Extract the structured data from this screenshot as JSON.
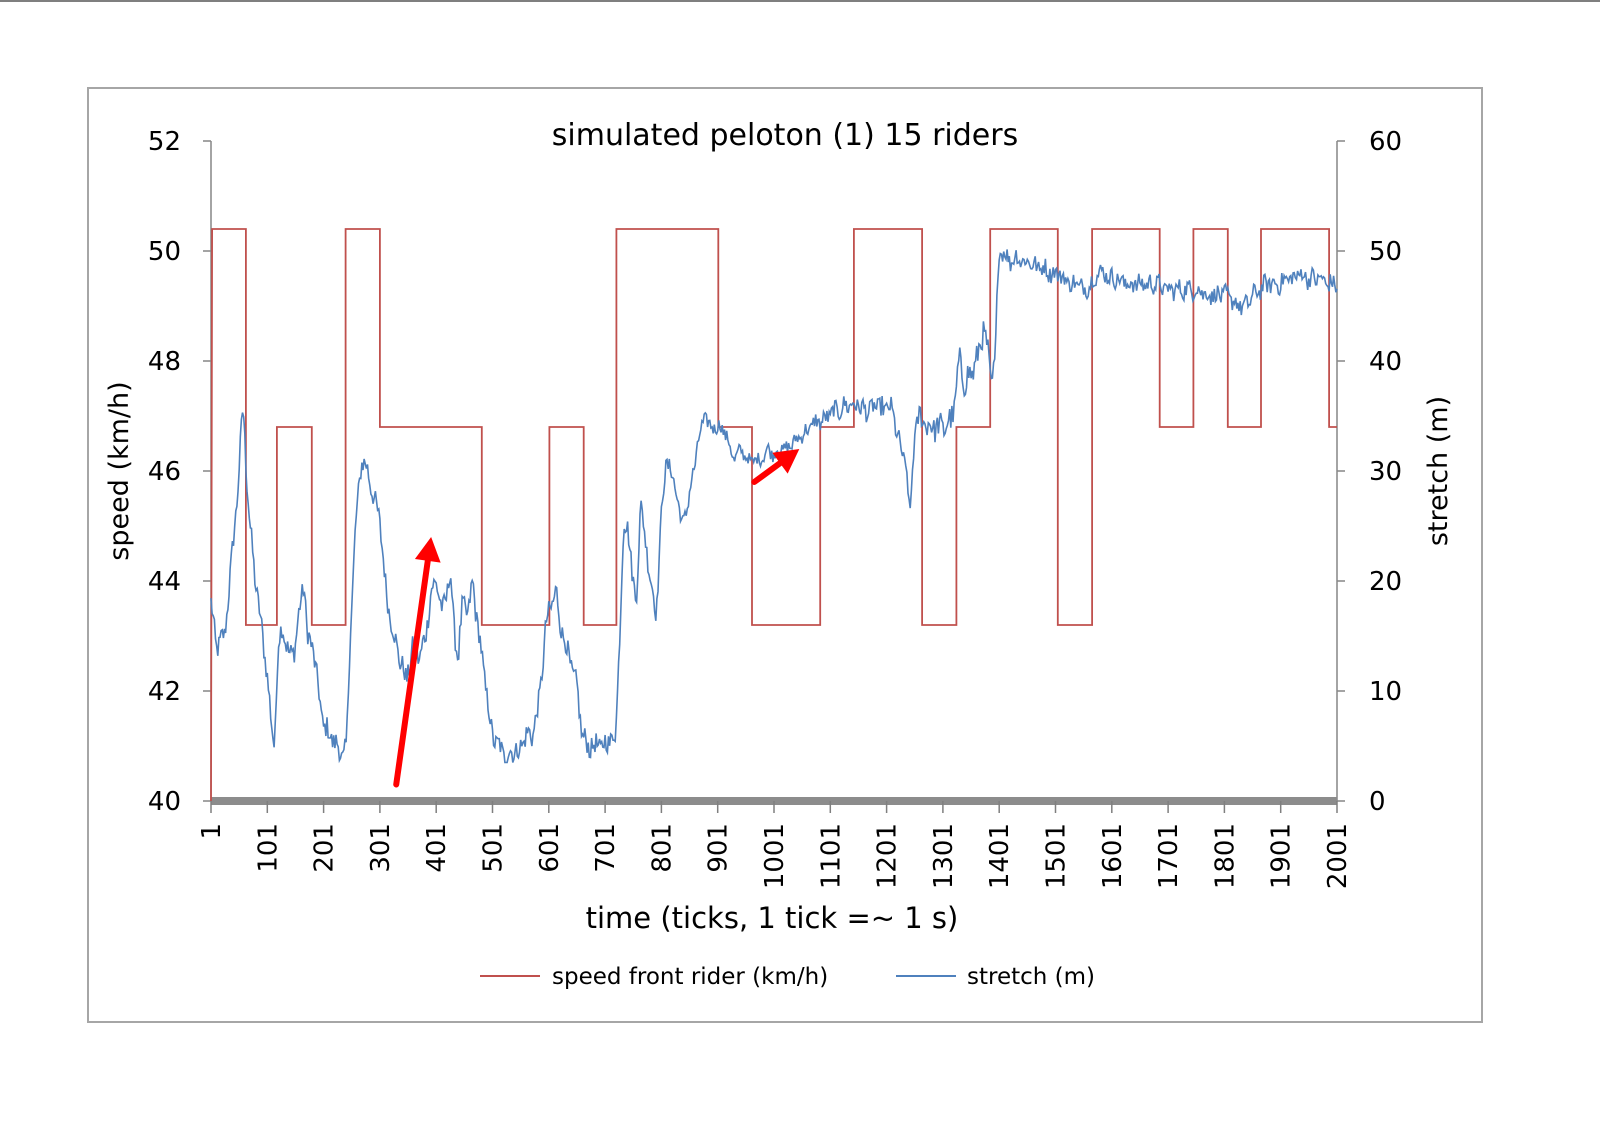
{
  "chart_data": {
    "type": "line",
    "title": "simulated peloton (1) 15 riders",
    "xlabel": "time (ticks, 1 tick =~ 1 s)",
    "ylabel_left": "speed (km/h)",
    "ylabel_right": "stretch (m)",
    "xlim": [
      1,
      2001
    ],
    "ylim_left": [
      40,
      52
    ],
    "ylim_right": [
      0,
      60
    ],
    "x_ticks": [
      "1",
      "101",
      "201",
      "301",
      "401",
      "501",
      "601",
      "701",
      "801",
      "901",
      "1001",
      "1101",
      "1201",
      "1301",
      "1401",
      "1501",
      "1601",
      "1701",
      "1801",
      "1901",
      "2001"
    ],
    "y_ticks_left": [
      "40",
      "42",
      "44",
      "46",
      "48",
      "50",
      "52"
    ],
    "y_ticks_right": [
      "0",
      "10",
      "20",
      "30",
      "40",
      "50",
      "60"
    ],
    "grid": false,
    "legend_position": "bottom",
    "series": [
      {
        "name": "speed front rider (km/h)",
        "axis": "left",
        "color": "#c0504d",
        "step": true,
        "points": [
          [
            1,
            40.0
          ],
          [
            3,
            50.4
          ],
          [
            63,
            50.4
          ],
          [
            63,
            43.2
          ],
          [
            118,
            43.2
          ],
          [
            118,
            46.8
          ],
          [
            180,
            46.8
          ],
          [
            180,
            43.2
          ],
          [
            240,
            43.2
          ],
          [
            240,
            50.4
          ],
          [
            301,
            50.4
          ],
          [
            301,
            46.8
          ],
          [
            482,
            46.8
          ],
          [
            482,
            43.2
          ],
          [
            602,
            43.2
          ],
          [
            602,
            46.8
          ],
          [
            663,
            46.8
          ],
          [
            663,
            43.2
          ],
          [
            721,
            43.2
          ],
          [
            721,
            50.4
          ],
          [
            902,
            50.4
          ],
          [
            902,
            46.8
          ],
          [
            962,
            46.8
          ],
          [
            962,
            43.2
          ],
          [
            1083,
            43.2
          ],
          [
            1083,
            46.8
          ],
          [
            1143,
            46.8
          ],
          [
            1143,
            50.4
          ],
          [
            1264,
            50.4
          ],
          [
            1264,
            43.2
          ],
          [
            1325,
            43.2
          ],
          [
            1325,
            46.8
          ],
          [
            1385,
            46.8
          ],
          [
            1385,
            50.4
          ],
          [
            1505,
            50.4
          ],
          [
            1505,
            43.2
          ],
          [
            1566,
            43.2
          ],
          [
            1566,
            50.4
          ],
          [
            1686,
            50.4
          ],
          [
            1686,
            46.8
          ],
          [
            1746,
            46.8
          ],
          [
            1746,
            50.4
          ],
          [
            1807,
            50.4
          ],
          [
            1807,
            46.8
          ],
          [
            1866,
            46.8
          ],
          [
            1866,
            50.4
          ],
          [
            1987,
            50.4
          ],
          [
            1987,
            46.8
          ],
          [
            2001,
            46.8
          ]
        ]
      },
      {
        "name": "stretch (m)",
        "axis": "right",
        "color": "#4f81bd",
        "noise": [
          [
            1,
            1.0
          ],
          [
            720,
            1.0
          ],
          [
            960,
            0.5
          ],
          [
            1380,
            1.3
          ],
          [
            1400,
            0.8
          ],
          [
            2001,
            0.8
          ]
        ],
        "points": [
          [
            1,
            18
          ],
          [
            10,
            14
          ],
          [
            25,
            15
          ],
          [
            38,
            22
          ],
          [
            48,
            28
          ],
          [
            58,
            36
          ],
          [
            64,
            30
          ],
          [
            70,
            25
          ],
          [
            80,
            20
          ],
          [
            90,
            16
          ],
          [
            100,
            12
          ],
          [
            108,
            7
          ],
          [
            114,
            5
          ],
          [
            120,
            14
          ],
          [
            128,
            16
          ],
          [
            140,
            13
          ],
          [
            150,
            14
          ],
          [
            160,
            18
          ],
          [
            166,
            20
          ],
          [
            172,
            15
          ],
          [
            182,
            14
          ],
          [
            192,
            10
          ],
          [
            200,
            7
          ],
          [
            212,
            6
          ],
          [
            225,
            5
          ],
          [
            236,
            4
          ],
          [
            242,
            5
          ],
          [
            248,
            15
          ],
          [
            258,
            25
          ],
          [
            268,
            31
          ],
          [
            280,
            30
          ],
          [
            292,
            27
          ],
          [
            300,
            26
          ],
          [
            312,
            19
          ],
          [
            326,
            15
          ],
          [
            336,
            13
          ],
          [
            348,
            11
          ],
          [
            360,
            14
          ],
          [
            372,
            13
          ],
          [
            382,
            15
          ],
          [
            392,
            19
          ],
          [
            402,
            20
          ],
          [
            412,
            17
          ],
          [
            420,
            19
          ],
          [
            426,
            21
          ],
          [
            432,
            16
          ],
          [
            440,
            13
          ],
          [
            448,
            18
          ],
          [
            458,
            17
          ],
          [
            466,
            20
          ],
          [
            472,
            17
          ],
          [
            480,
            14
          ],
          [
            490,
            10
          ],
          [
            500,
            6
          ],
          [
            512,
            5
          ],
          [
            524,
            4
          ],
          [
            536,
            4.5
          ],
          [
            548,
            4.5
          ],
          [
            560,
            6
          ],
          [
            572,
            6
          ],
          [
            584,
            9
          ],
          [
            596,
            16
          ],
          [
            606,
            18
          ],
          [
            614,
            19
          ],
          [
            622,
            16
          ],
          [
            632,
            14
          ],
          [
            642,
            12
          ],
          [
            652,
            10
          ],
          [
            660,
            6
          ],
          [
            670,
            5
          ],
          [
            682,
            5
          ],
          [
            696,
            5
          ],
          [
            708,
            5.5
          ],
          [
            720,
            6
          ],
          [
            726,
            14
          ],
          [
            734,
            25
          ],
          [
            742,
            25
          ],
          [
            750,
            20
          ],
          [
            756,
            18
          ],
          [
            764,
            27
          ],
          [
            772,
            24
          ],
          [
            782,
            20
          ],
          [
            792,
            17
          ],
          [
            802,
            27
          ],
          [
            810,
            31
          ],
          [
            818,
            30
          ],
          [
            828,
            28
          ],
          [
            838,
            25
          ],
          [
            848,
            27
          ],
          [
            858,
            30
          ],
          [
            868,
            33
          ],
          [
            878,
            35
          ],
          [
            888,
            34
          ],
          [
            898,
            34
          ],
          [
            908,
            34
          ],
          [
            918,
            33
          ],
          [
            930,
            31
          ],
          [
            942,
            32
          ],
          [
            954,
            31
          ],
          [
            966,
            31
          ],
          [
            978,
            31
          ],
          [
            990,
            32
          ],
          [
            1000,
            31.5
          ],
          [
            1012,
            32
          ],
          [
            1024,
            32
          ],
          [
            1034,
            32.5
          ],
          [
            1044,
            33
          ],
          [
            1056,
            33.5
          ],
          [
            1066,
            34
          ],
          [
            1076,
            34.5
          ],
          [
            1086,
            34.5
          ],
          [
            1098,
            35
          ],
          [
            1108,
            35.5
          ],
          [
            1118,
            35.5
          ],
          [
            1128,
            36
          ],
          [
            1138,
            36
          ],
          [
            1150,
            36
          ],
          [
            1162,
            35.5
          ],
          [
            1172,
            35.5
          ],
          [
            1184,
            36
          ],
          [
            1196,
            35.5
          ],
          [
            1206,
            36
          ],
          [
            1218,
            34
          ],
          [
            1230,
            31
          ],
          [
            1238,
            30
          ],
          [
            1242,
            25
          ],
          [
            1250,
            33
          ],
          [
            1258,
            35
          ],
          [
            1268,
            34.5
          ],
          [
            1278,
            34
          ],
          [
            1290,
            34
          ],
          [
            1302,
            34
          ],
          [
            1314,
            34.5
          ],
          [
            1322,
            36
          ],
          [
            1330,
            40
          ],
          [
            1340,
            38
          ],
          [
            1352,
            39
          ],
          [
            1362,
            40
          ],
          [
            1372,
            43
          ],
          [
            1380,
            41
          ],
          [
            1386,
            38
          ],
          [
            1394,
            40
          ],
          [
            1400,
            50
          ],
          [
            1408,
            50
          ],
          [
            1420,
            49
          ],
          [
            1432,
            49.5
          ],
          [
            1444,
            49
          ],
          [
            1456,
            49
          ],
          [
            1468,
            48.5
          ],
          [
            1480,
            48.5
          ],
          [
            1492,
            48
          ],
          [
            1504,
            48
          ],
          [
            1516,
            47.5
          ],
          [
            1528,
            47
          ],
          [
            1540,
            47
          ],
          [
            1552,
            46.5
          ],
          [
            1564,
            47
          ],
          [
            1576,
            48
          ],
          [
            1588,
            48
          ],
          [
            1600,
            47.5
          ],
          [
            1612,
            47.5
          ],
          [
            1624,
            47
          ],
          [
            1636,
            47
          ],
          [
            1648,
            47
          ],
          [
            1660,
            47
          ],
          [
            1672,
            47
          ],
          [
            1684,
            47
          ],
          [
            1696,
            46.5
          ],
          [
            1708,
            46.5
          ],
          [
            1720,
            46.5
          ],
          [
            1732,
            46.5
          ],
          [
            1744,
            46.5
          ],
          [
            1756,
            46.5
          ],
          [
            1768,
            46
          ],
          [
            1780,
            46
          ],
          [
            1792,
            46
          ],
          [
            1804,
            46
          ],
          [
            1816,
            45.5
          ],
          [
            1828,
            45
          ],
          [
            1840,
            45
          ],
          [
            1852,
            46
          ],
          [
            1864,
            46.5
          ],
          [
            1876,
            47
          ],
          [
            1888,
            47
          ],
          [
            1900,
            47
          ],
          [
            1912,
            47.5
          ],
          [
            1924,
            47.5
          ],
          [
            1936,
            48
          ],
          [
            1948,
            47.5
          ],
          [
            1960,
            47.5
          ],
          [
            1972,
            47.5
          ],
          [
            1984,
            47
          ],
          [
            2001,
            47
          ]
        ]
      }
    ],
    "annotations": [
      {
        "type": "arrow",
        "color": "#ff0000",
        "from": [
          330,
          40.3
        ],
        "to": [
          392,
          44.8
        ]
      },
      {
        "type": "arrow",
        "color": "#ff0000",
        "from": [
          966,
          45.8
        ],
        "to": [
          1046,
          46.4
        ]
      }
    ]
  }
}
